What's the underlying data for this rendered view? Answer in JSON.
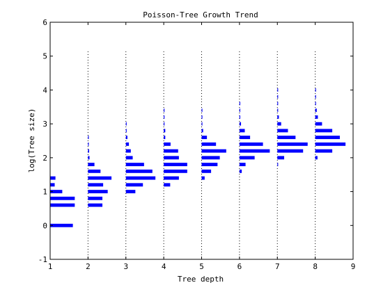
{
  "chart_data": {
    "type": "bar",
    "orientation": "horizontal-histograms",
    "title": "Poisson-Tree Growth Trend",
    "xlabel": "Tree depth",
    "ylabel": "log(Tree size)",
    "xlim": [
      1,
      9
    ],
    "ylim": [
      -1,
      6
    ],
    "xticks": [
      1,
      2,
      3,
      4,
      5,
      6,
      7,
      8,
      9
    ],
    "yticks": [
      -1,
      0,
      1,
      2,
      3,
      4,
      5,
      6
    ],
    "grid": false,
    "baselines": "vertical dotted lines at depths 2-8",
    "bar_color": "#0000ff",
    "bin_height": 0.1,
    "series": [
      {
        "depth": 1,
        "bins": [
          {
            "y": 0.0,
            "w": 0.6
          },
          {
            "y": 0.6,
            "w": 0.65
          },
          {
            "y": 0.8,
            "w": 0.65
          },
          {
            "y": 1.0,
            "w": 0.32
          },
          {
            "y": 1.2,
            "w": 0.12
          },
          {
            "y": 1.4,
            "w": 0.14
          }
        ]
      },
      {
        "depth": 2,
        "bins": [
          {
            "y": 0.6,
            "w": 0.38
          },
          {
            "y": 0.8,
            "w": 0.38
          },
          {
            "y": 1.0,
            "w": 0.52
          },
          {
            "y": 1.2,
            "w": 0.4
          },
          {
            "y": 1.4,
            "w": 0.62
          },
          {
            "y": 1.6,
            "w": 0.33
          },
          {
            "y": 1.8,
            "w": 0.17
          },
          {
            "y": 2.0,
            "w": 0.04
          },
          {
            "y": 2.2,
            "w": 0.03
          },
          {
            "y": 2.4,
            "w": 0.02
          },
          {
            "y": 2.6,
            "w": 0.02
          }
        ]
      },
      {
        "depth": 3,
        "bins": [
          {
            "y": 1.0,
            "w": 0.25
          },
          {
            "y": 1.2,
            "w": 0.45
          },
          {
            "y": 1.4,
            "w": 0.78
          },
          {
            "y": 1.6,
            "w": 0.7
          },
          {
            "y": 1.8,
            "w": 0.48
          },
          {
            "y": 2.0,
            "w": 0.18
          },
          {
            "y": 2.2,
            "w": 0.13
          },
          {
            "y": 2.4,
            "w": 0.08
          },
          {
            "y": 2.6,
            "w": 0.04
          },
          {
            "y": 2.8,
            "w": 0.02
          },
          {
            "y": 3.0,
            "w": 0.02
          }
        ]
      },
      {
        "depth": 4,
        "bins": [
          {
            "y": 1.2,
            "w": 0.17
          },
          {
            "y": 1.4,
            "w": 0.4
          },
          {
            "y": 1.6,
            "w": 0.62
          },
          {
            "y": 1.8,
            "w": 0.62
          },
          {
            "y": 2.0,
            "w": 0.4
          },
          {
            "y": 2.2,
            "w": 0.38
          },
          {
            "y": 2.4,
            "w": 0.18
          },
          {
            "y": 2.6,
            "w": 0.04
          },
          {
            "y": 2.8,
            "w": 0.04
          },
          {
            "y": 3.0,
            "w": 0.02
          },
          {
            "y": 3.2,
            "w": 0.02
          },
          {
            "y": 3.4,
            "w": 0.02
          }
        ]
      },
      {
        "depth": 5,
        "bins": [
          {
            "y": 1.4,
            "w": 0.08
          },
          {
            "y": 1.6,
            "w": 0.25
          },
          {
            "y": 1.8,
            "w": 0.42
          },
          {
            "y": 2.0,
            "w": 0.48
          },
          {
            "y": 2.2,
            "w": 0.65
          },
          {
            "y": 2.4,
            "w": 0.38
          },
          {
            "y": 2.6,
            "w": 0.14
          },
          {
            "y": 2.8,
            "w": 0.04
          },
          {
            "y": 3.0,
            "w": 0.02
          },
          {
            "y": 3.2,
            "w": 0.02
          },
          {
            "y": 3.4,
            "w": 0.02
          }
        ]
      },
      {
        "depth": 6,
        "bins": [
          {
            "y": 1.6,
            "w": 0.06
          },
          {
            "y": 1.8,
            "w": 0.16
          },
          {
            "y": 2.0,
            "w": 0.4
          },
          {
            "y": 2.2,
            "w": 0.8
          },
          {
            "y": 2.4,
            "w": 0.62
          },
          {
            "y": 2.6,
            "w": 0.28
          },
          {
            "y": 2.8,
            "w": 0.14
          },
          {
            "y": 3.0,
            "w": 0.04
          },
          {
            "y": 3.2,
            "w": 0.02
          },
          {
            "y": 3.4,
            "w": 0.02
          },
          {
            "y": 3.6,
            "w": 0.02
          }
        ]
      },
      {
        "depth": 7,
        "bins": [
          {
            "y": 1.8,
            "w": 0.02
          },
          {
            "y": 2.0,
            "w": 0.18
          },
          {
            "y": 2.2,
            "w": 0.68
          },
          {
            "y": 2.4,
            "w": 0.8
          },
          {
            "y": 2.6,
            "w": 0.48
          },
          {
            "y": 2.8,
            "w": 0.28
          },
          {
            "y": 3.0,
            "w": 0.1
          },
          {
            "y": 3.2,
            "w": 0.04
          },
          {
            "y": 3.4,
            "w": 0.02
          },
          {
            "y": 3.6,
            "w": 0.02
          },
          {
            "y": 3.8,
            "w": 0.02
          },
          {
            "y": 4.0,
            "w": 0.02
          }
        ]
      },
      {
        "depth": 8,
        "bins": [
          {
            "y": 2.0,
            "w": 0.06
          },
          {
            "y": 2.2,
            "w": 0.45
          },
          {
            "y": 2.4,
            "w": 0.8
          },
          {
            "y": 2.6,
            "w": 0.65
          },
          {
            "y": 2.8,
            "w": 0.45
          },
          {
            "y": 3.0,
            "w": 0.18
          },
          {
            "y": 3.2,
            "w": 0.07
          },
          {
            "y": 3.4,
            "w": 0.04
          },
          {
            "y": 3.6,
            "w": 0.02
          },
          {
            "y": 3.8,
            "w": 0.02
          },
          {
            "y": 4.0,
            "w": 0.02
          }
        ]
      }
    ]
  }
}
